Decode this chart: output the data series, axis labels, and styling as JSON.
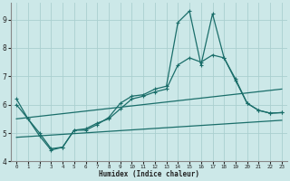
{
  "xlabel": "Humidex (Indice chaleur)",
  "bg_color": "#cce8e8",
  "line_color": "#1a6e6a",
  "grid_color": "#aacfcf",
  "xlim": [
    -0.5,
    23.5
  ],
  "ylim": [
    4.0,
    9.6
  ],
  "yticks": [
    4,
    5,
    6,
    7,
    8,
    9
  ],
  "xticks": [
    0,
    1,
    2,
    3,
    4,
    5,
    6,
    7,
    8,
    9,
    10,
    11,
    12,
    13,
    14,
    15,
    16,
    17,
    18,
    19,
    20,
    21,
    22,
    23
  ],
  "line1_x": [
    0,
    1,
    2,
    3,
    4,
    5,
    6,
    7,
    8,
    9,
    10,
    11,
    12,
    13,
    14,
    15,
    16,
    17,
    18,
    19,
    20,
    21,
    22,
    23
  ],
  "line1_y": [
    6.2,
    5.5,
    4.9,
    4.4,
    4.5,
    5.1,
    5.1,
    5.3,
    5.55,
    6.05,
    6.3,
    6.35,
    6.55,
    6.65,
    8.9,
    9.3,
    7.4,
    9.2,
    7.65,
    6.9,
    6.05,
    5.8,
    5.7,
    5.72
  ],
  "line2_x": [
    0,
    1,
    2,
    3,
    4,
    5,
    6,
    7,
    8,
    9,
    10,
    11,
    12,
    13,
    14,
    15,
    16,
    17,
    18,
    19,
    20,
    21,
    22,
    23
  ],
  "line2_y": [
    6.0,
    5.5,
    5.0,
    4.45,
    4.5,
    5.1,
    5.15,
    5.35,
    5.5,
    5.85,
    6.2,
    6.3,
    6.45,
    6.55,
    7.4,
    7.65,
    7.5,
    7.75,
    7.65,
    6.85,
    6.05,
    5.8,
    5.7,
    5.72
  ],
  "line3_x": [
    0,
    23
  ],
  "line3_y": [
    5.5,
    6.55
  ],
  "line4_x": [
    0,
    23
  ],
  "line4_y": [
    4.85,
    5.45
  ]
}
